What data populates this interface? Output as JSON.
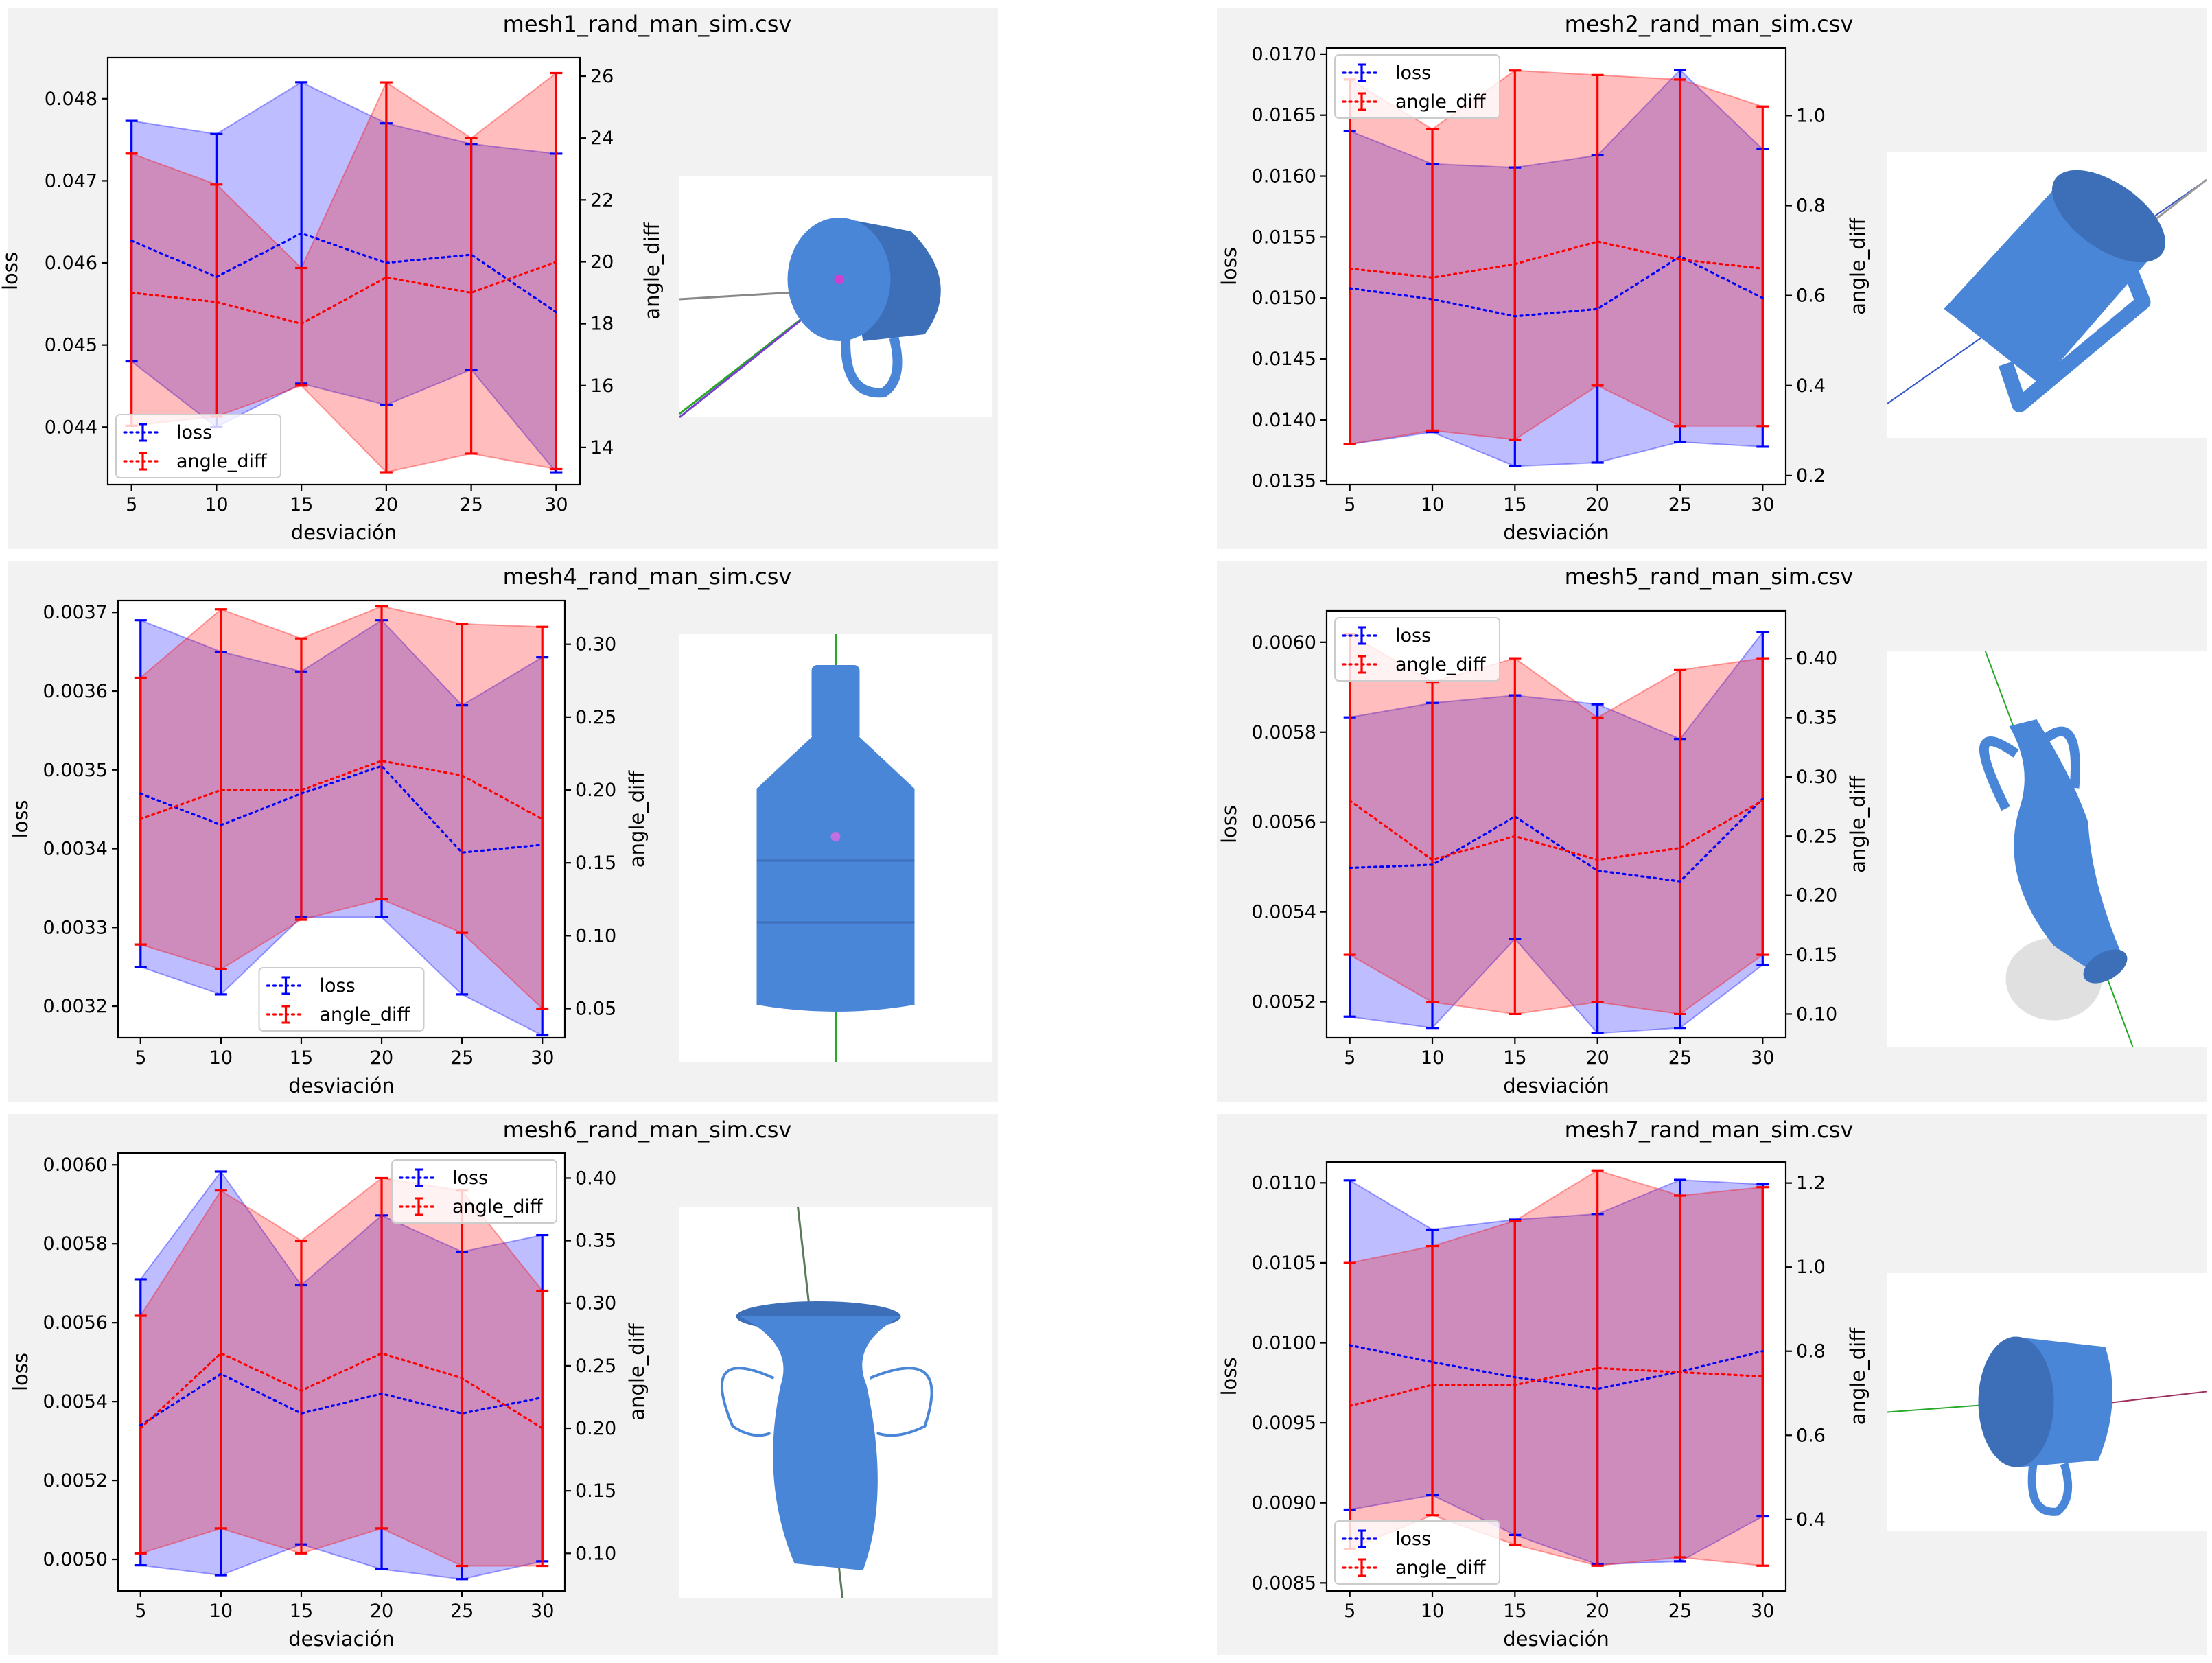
{
  "colors": {
    "loss": "#0000ff",
    "angle_diff": "#ff0000",
    "loss_fill": "#b8b8ff",
    "angle_fill": "#ffb8b8",
    "overlap_fill": "#cc8fc4",
    "panel_bg": "#f2f2f2",
    "mesh": "#4a86d8"
  },
  "chart_data": [
    {
      "type": "line",
      "title": "mesh1_rand_man_sim.csv",
      "xlabel": "desviación",
      "ylabel": "loss",
      "y2label": "angle_diff",
      "x": [
        5,
        10,
        15,
        20,
        25,
        30
      ],
      "ylim": [
        0.0433,
        0.0485
      ],
      "yticks": [
        "0.044",
        "0.045",
        "0.046",
        "0.047",
        "0.048"
      ],
      "y2lim": [
        12.8,
        26.6
      ],
      "y2ticks": [
        "14",
        "16",
        "18",
        "20",
        "22",
        "24",
        "26"
      ],
      "series": [
        {
          "name": "loss",
          "axis": "left",
          "values": [
            0.04627,
            0.04583,
            0.04636,
            0.046,
            0.0461,
            0.0454
          ],
          "lower": [
            0.0448,
            0.044,
            0.04453,
            0.04427,
            0.0447,
            0.04345
          ],
          "upper": [
            0.04773,
            0.04757,
            0.0482,
            0.0477,
            0.04745,
            0.04733
          ]
        },
        {
          "name": "angle_diff",
          "axis": "right",
          "values": [
            19.0,
            18.7,
            18.0,
            19.5,
            19.0,
            20.0
          ],
          "lower": [
            14.7,
            15.0,
            16.0,
            13.2,
            13.8,
            13.3
          ],
          "upper": [
            23.5,
            22.5,
            19.8,
            25.8,
            24.0,
            26.1
          ]
        }
      ],
      "legend": "bottom-left",
      "object": "mug-side-view"
    },
    {
      "type": "line",
      "title": "mesh2_rand_man_sim.csv",
      "xlabel": "desviación",
      "ylabel": "loss",
      "y2label": "angle_diff",
      "x": [
        5,
        10,
        15,
        20,
        25,
        30
      ],
      "ylim": [
        0.01347,
        0.01705
      ],
      "yticks": [
        "0.0135",
        "0.0140",
        "0.0145",
        "0.0150",
        "0.0155",
        "0.0160",
        "0.0165",
        "0.0170"
      ],
      "y2lim": [
        0.18,
        1.15
      ],
      "y2ticks": [
        "0.2",
        "0.4",
        "0.6",
        "0.8",
        "1.0"
      ],
      "series": [
        {
          "name": "loss",
          "axis": "left",
          "values": [
            0.01508,
            0.01499,
            0.01485,
            0.01491,
            0.01534,
            0.015
          ],
          "lower": [
            0.0138,
            0.0139,
            0.01362,
            0.01365,
            0.01382,
            0.01378
          ],
          "upper": [
            0.01637,
            0.0161,
            0.01607,
            0.01617,
            0.01687,
            0.01622
          ]
        },
        {
          "name": "angle_diff",
          "axis": "right",
          "values": [
            0.66,
            0.64,
            0.67,
            0.72,
            0.68,
            0.66
          ],
          "lower": [
            0.27,
            0.3,
            0.28,
            0.4,
            0.31,
            0.31
          ],
          "upper": [
            1.08,
            0.97,
            1.1,
            1.09,
            1.08,
            1.02
          ]
        }
      ],
      "legend": "top-left",
      "object": "mug-tilted"
    },
    {
      "type": "line",
      "title": "mesh4_rand_man_sim.csv",
      "xlabel": "desviación",
      "ylabel": "loss",
      "y2label": "angle_diff",
      "x": [
        5,
        10,
        15,
        20,
        25,
        30
      ],
      "ylim": [
        0.00316,
        0.003715
      ],
      "yticks": [
        "0.0032",
        "0.0033",
        "0.0034",
        "0.0035",
        "0.0036",
        "0.0037"
      ],
      "y2lim": [
        0.03,
        0.33
      ],
      "y2ticks": [
        "0.05",
        "0.10",
        "0.15",
        "0.20",
        "0.25",
        "0.30"
      ],
      "series": [
        {
          "name": "loss",
          "axis": "left",
          "values": [
            0.00347,
            0.00343,
            0.00347,
            0.003505,
            0.003395,
            0.003405
          ],
          "lower": [
            0.00325,
            0.003215,
            0.003313,
            0.003313,
            0.003215,
            0.003163
          ],
          "upper": [
            0.00369,
            0.00365,
            0.003625,
            0.00369,
            0.003582,
            0.003643
          ]
        },
        {
          "name": "angle_diff",
          "axis": "right",
          "values": [
            0.18,
            0.2,
            0.2,
            0.22,
            0.21,
            0.18
          ],
          "lower": [
            0.094,
            0.077,
            0.111,
            0.125,
            0.102,
            0.05
          ],
          "upper": [
            0.277,
            0.324,
            0.304,
            0.326,
            0.314,
            0.312
          ]
        }
      ],
      "legend": "bottom-center",
      "object": "bottle"
    },
    {
      "type": "line",
      "title": "mesh5_rand_man_sim.csv",
      "xlabel": "desviación",
      "ylabel": "loss",
      "y2label": "angle_diff",
      "x": [
        5,
        10,
        15,
        20,
        25,
        30
      ],
      "ylim": [
        0.00512,
        0.00607
      ],
      "yticks": [
        "0.0052",
        "0.0054",
        "0.0056",
        "0.0058",
        "0.0060"
      ],
      "y2lim": [
        0.08,
        0.44
      ],
      "y2ticks": [
        "0.10",
        "0.15",
        "0.20",
        "0.25",
        "0.30",
        "0.35",
        "0.40"
      ],
      "series": [
        {
          "name": "loss",
          "axis": "left",
          "values": [
            0.005498,
            0.005505,
            0.005612,
            0.005492,
            0.005468,
            0.005652
          ],
          "lower": [
            0.005167,
            0.005142,
            0.00534,
            0.00513,
            0.005142,
            0.005282
          ],
          "upper": [
            0.005833,
            0.005865,
            0.005882,
            0.005862,
            0.005785,
            0.006022
          ]
        },
        {
          "name": "angle_diff",
          "axis": "right",
          "values": [
            0.28,
            0.23,
            0.25,
            0.23,
            0.24,
            0.28
          ],
          "lower": [
            0.15,
            0.11,
            0.1,
            0.11,
            0.1,
            0.15
          ],
          "upper": [
            0.42,
            0.38,
            0.4,
            0.35,
            0.39,
            0.4
          ]
        }
      ],
      "legend": "top-left",
      "object": "amphora"
    },
    {
      "type": "line",
      "title": "mesh6_rand_man_sim.csv",
      "xlabel": "desviación",
      "ylabel": "loss",
      "y2label": "angle_diff",
      "x": [
        5,
        10,
        15,
        20,
        25,
        30
      ],
      "ylim": [
        0.00492,
        0.00603
      ],
      "yticks": [
        "0.0050",
        "0.0052",
        "0.0054",
        "0.0056",
        "0.0058",
        "0.0060"
      ],
      "y2lim": [
        0.07,
        0.42
      ],
      "y2ticks": [
        "0.10",
        "0.15",
        "0.20",
        "0.25",
        "0.30",
        "0.35",
        "0.40"
      ],
      "series": [
        {
          "name": "loss",
          "axis": "left",
          "values": [
            0.00534,
            0.00547,
            0.00537,
            0.00542,
            0.00537,
            0.00541
          ],
          "lower": [
            0.004985,
            0.00496,
            0.005038,
            0.004975,
            0.00495,
            0.004995
          ],
          "upper": [
            0.00571,
            0.005983,
            0.005695,
            0.005872,
            0.00578,
            0.005822
          ]
        },
        {
          "name": "angle_diff",
          "axis": "right",
          "values": [
            0.2,
            0.26,
            0.23,
            0.26,
            0.24,
            0.2
          ],
          "lower": [
            0.1,
            0.12,
            0.1,
            0.12,
            0.09,
            0.09
          ],
          "upper": [
            0.29,
            0.39,
            0.35,
            0.4,
            0.39,
            0.31
          ]
        }
      ],
      "legend": "top-right",
      "object": "vase"
    },
    {
      "type": "line",
      "title": "mesh7_rand_man_sim.csv",
      "xlabel": "desviación",
      "ylabel": "loss",
      "y2label": "angle_diff",
      "x": [
        5,
        10,
        15,
        20,
        25,
        30
      ],
      "ylim": [
        0.00845,
        0.01113
      ],
      "yticks": [
        "0.0085",
        "0.0090",
        "0.0095",
        "0.0100",
        "0.0105",
        "0.0110"
      ],
      "y2lim": [
        0.23,
        1.25
      ],
      "y2ticks": [
        "0.4",
        "0.6",
        "0.8",
        "1.0",
        "1.2"
      ],
      "series": [
        {
          "name": "loss",
          "axis": "left",
          "values": [
            0.009985,
            0.00988,
            0.009785,
            0.009712,
            0.00982,
            0.009948
          ],
          "lower": [
            0.008958,
            0.009048,
            0.0088,
            0.008615,
            0.008635,
            0.008915
          ],
          "upper": [
            0.011015,
            0.010708,
            0.01077,
            0.010805,
            0.011018,
            0.01099
          ]
        },
        {
          "name": "angle_diff",
          "axis": "right",
          "values": [
            0.67,
            0.72,
            0.72,
            0.76,
            0.75,
            0.74
          ],
          "lower": [
            0.33,
            0.41,
            0.34,
            0.29,
            0.31,
            0.29
          ],
          "upper": [
            1.01,
            1.05,
            1.11,
            1.23,
            1.17,
            1.19
          ]
        }
      ],
      "legend": "bottom-left",
      "object": "mug-top-view"
    }
  ]
}
